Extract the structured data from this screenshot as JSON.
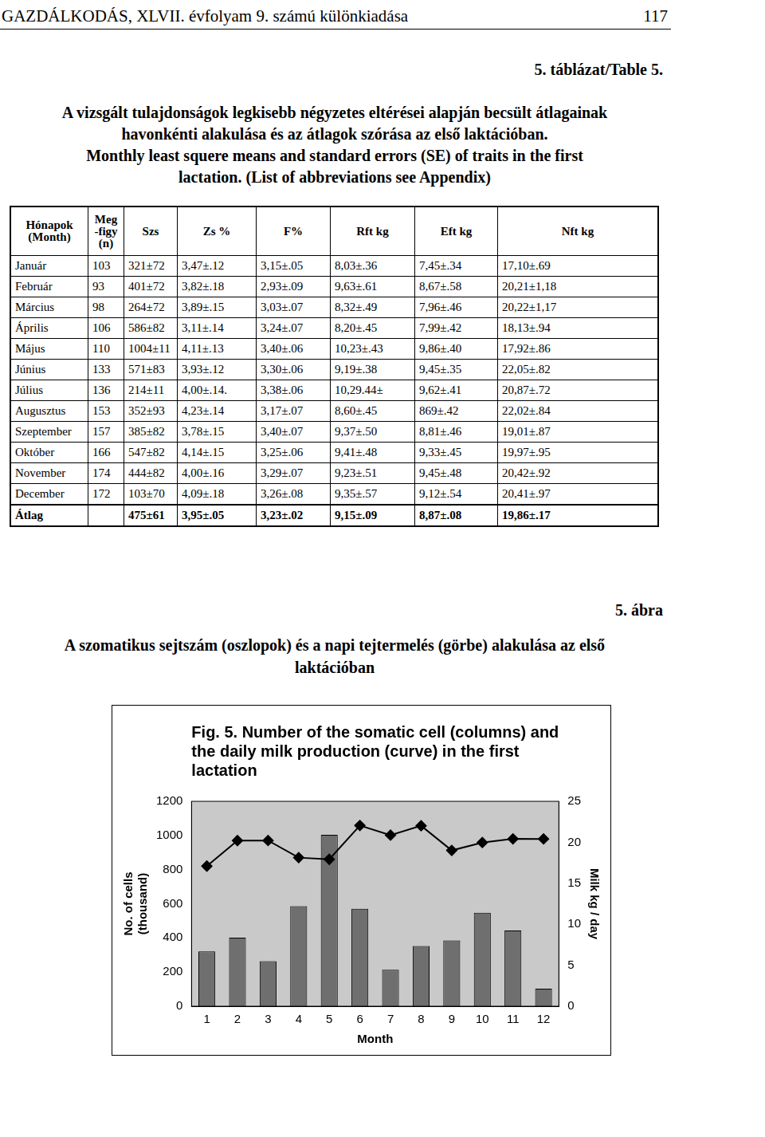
{
  "header": {
    "journal": "GAZDÁLKODÁS, XLVII. évfolyam 9. számú különkiadása",
    "page": "117"
  },
  "table_label": "5. táblázat/Table 5.",
  "table_caption_hu": [
    "A vizsgált tulajdonságok legkisebb négyzetes eltérései alapján becsült átlagainak",
    "havonkénti alakulása és az átlagok szórása az első laktációban."
  ],
  "table_caption_en": [
    "Monthly least squere means and standard errors (SE) of traits in the first",
    "lactation. (List of abbreviations see Appendix)"
  ],
  "table": {
    "header": [
      [
        "Hónapok",
        "(Month)"
      ],
      [
        "Meg",
        "-figy",
        "(n)"
      ],
      [
        "Szs"
      ],
      [
        "Zs %"
      ],
      [
        "F%"
      ],
      [
        "Rft kg"
      ],
      [
        "Eft kg"
      ],
      [
        "Nft kg"
      ]
    ],
    "rows": [
      [
        "Január",
        103,
        "321±72",
        "3,47±.12",
        "3,15±.05",
        "8,03±.36",
        "7,45±.34",
        "17,10±.69"
      ],
      [
        "Február",
        93,
        "401±72",
        "3,82±.18",
        "2,93±.09",
        "9,63±.61",
        "8,67±.58",
        "20,21±1,18"
      ],
      [
        "Március",
        98,
        "264±72",
        "3,89±.15",
        "3,03±.07",
        "8,32±.49",
        "7,96±.46",
        "20,22±1,17"
      ],
      [
        "Április",
        106,
        "586±82",
        "3,11±.14",
        "3,24±.07",
        "8,20±.45",
        "7,99±.42",
        "18,13±.94"
      ],
      [
        "Május",
        110,
        "1004±11",
        "4,11±.13",
        "3,40±.06",
        "10,23±.43",
        "9,86±.40",
        "17,92±.86"
      ],
      [
        "Június",
        133,
        "571±83",
        "3,93±.12",
        "3,30±.06",
        "9,19±.38",
        "9,45±.35",
        "22,05±.82"
      ],
      [
        "Július",
        136,
        "214±11",
        "4,00±.14.",
        "3,38±.06",
        "10,29.44±",
        "9,62±.41",
        "20,87±.72"
      ],
      [
        "Augusztus",
        153,
        "352±93",
        "4,23±.14",
        "3,17±.07",
        "8,60±.45",
        "869±.42",
        "22,02±.84"
      ],
      [
        "Szeptember",
        157,
        "385±82",
        "3,78±.15",
        "3,40±.07",
        "9,37±.50",
        "8,81±.46",
        "19,01±.87"
      ],
      [
        "Október",
        166,
        "547±82",
        "4,14±.15",
        "3,25±.06",
        "9,41±.48",
        "9,33±.45",
        "19,97±.95"
      ],
      [
        "November",
        174,
        "444±82",
        "4,00±.16",
        "3,29±.07",
        "9,23±.51",
        "9,45±.48",
        "20,42±.92"
      ],
      [
        "December",
        172,
        "103±70",
        "4,09±.18",
        "3,26±.08",
        "9,35±.57",
        "9,12±.54",
        "20,41±.97"
      ],
      [
        "Átlag",
        null,
        "475±61",
        "3,95±.05",
        "3,23±.02",
        "9,15±.09",
        "8,87±.08",
        "19,86±.17"
      ]
    ]
  },
  "figure_label": "5. ábra",
  "figure_caption_hu": [
    "A szomatikus sejtszám (oszlopok) és a napi tejtermelés (görbe) alakulása az első",
    "laktációban"
  ],
  "chart_data": {
    "type": "bar",
    "title": [
      "Fig. 5. Number of the somatic cell (columns) and",
      "the daily milk production (curve) in the first",
      "lactation"
    ],
    "x_label": "Month",
    "y_label": [
      "No. of cells",
      "(thousand)"
    ],
    "y2_label": "Milk kg / day",
    "categories": [
      "1",
      "2",
      "3",
      "4",
      "5",
      "6",
      "7",
      "8",
      "9",
      "10",
      "11",
      "12"
    ],
    "series": [
      {
        "type": "bar",
        "color": "#6f6f6f",
        "values": [
          321,
          401,
          264,
          586,
          1004,
          571,
          214,
          352,
          385,
          547,
          444,
          103
        ]
      },
      {
        "type": "line",
        "axis": "y2",
        "color": "#000000",
        "marker": "diamond",
        "line_style": "solid",
        "values": [
          17.1,
          20.21,
          20.22,
          18.13,
          17.92,
          22.05,
          20.87,
          22.02,
          19.01,
          19.97,
          20.42,
          20.41
        ]
      }
    ],
    "ylim": [
      0,
      1200
    ],
    "yticks": [
      0,
      200,
      400,
      600,
      800,
      1000,
      1200
    ],
    "y2lim": [
      0,
      25
    ],
    "y2ticks": [
      0,
      5,
      10,
      15,
      20,
      25
    ],
    "grid": false,
    "legend": false
  }
}
